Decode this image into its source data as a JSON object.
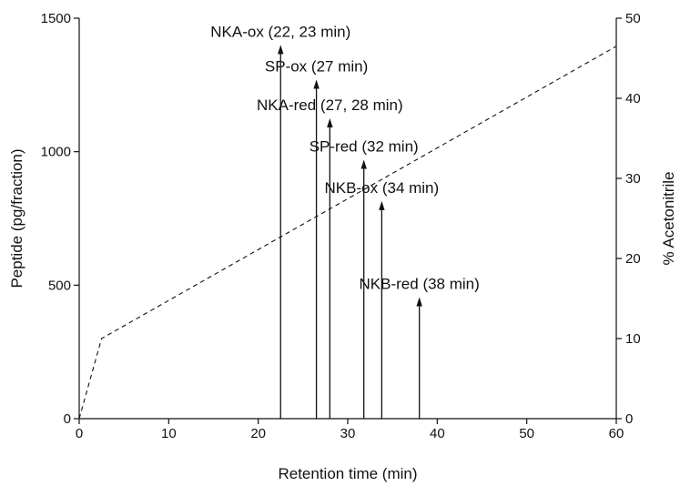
{
  "chart_data": {
    "type": "line",
    "title": "",
    "xlabel": "Retention time (min)",
    "ylabel": "Peptide (pg/fraction)",
    "y2label": "% Acetonitrile",
    "xlim": [
      0,
      60
    ],
    "ylim": [
      0,
      1500
    ],
    "y2lim": [
      0,
      50
    ],
    "x_ticks": [
      0,
      10,
      20,
      30,
      40,
      50,
      60
    ],
    "y_ticks": [
      0,
      500,
      1000,
      1500
    ],
    "y2_ticks": [
      0,
      10,
      20,
      30,
      40,
      50
    ],
    "grid": false,
    "series": [
      {
        "style": "dashed",
        "axis": "right",
        "x": [
          0,
          2.5,
          60
        ],
        "y": [
          0,
          10,
          46.5
        ]
      },
      {
        "style": "arrow-peaks",
        "axis": "left",
        "points": [
          {
            "x": 22.5,
            "y": 1400,
            "label": "NKA-ox (22, 23 min)"
          },
          {
            "x": 26.5,
            "y": 1270,
            "label": "SP-ox (27 min)"
          },
          {
            "x": 28,
            "y": 1125,
            "label": "NKA-red (27, 28 min)"
          },
          {
            "x": 31.8,
            "y": 970,
            "label": "SP-red (32 min)"
          },
          {
            "x": 33.8,
            "y": 815,
            "label": "NKB-ox (34 min)"
          },
          {
            "x": 38,
            "y": 455,
            "label": "NKB-red (38 min)"
          }
        ]
      }
    ]
  }
}
